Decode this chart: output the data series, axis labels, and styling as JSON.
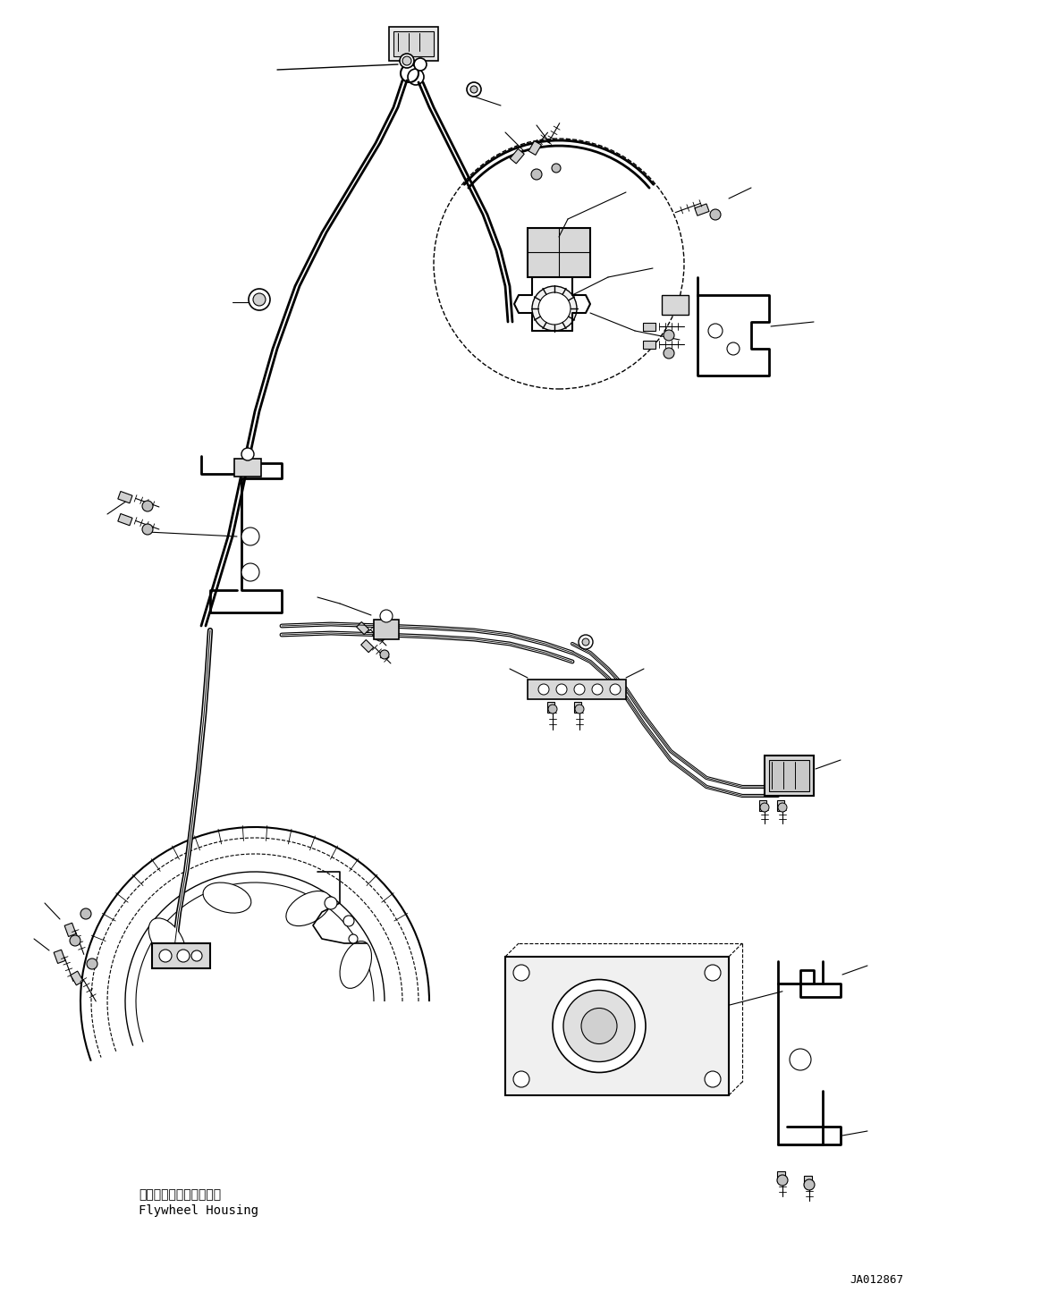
{
  "bg_color": "#ffffff",
  "line_color": "#000000",
  "text_color": "#000000",
  "fig_width": 11.63,
  "fig_height": 14.45,
  "dpi": 100,
  "label_flywheel_jp": "フライホイルハウジング",
  "label_flywheel_en": "Flywheel Housing",
  "part_number": "JA012867"
}
